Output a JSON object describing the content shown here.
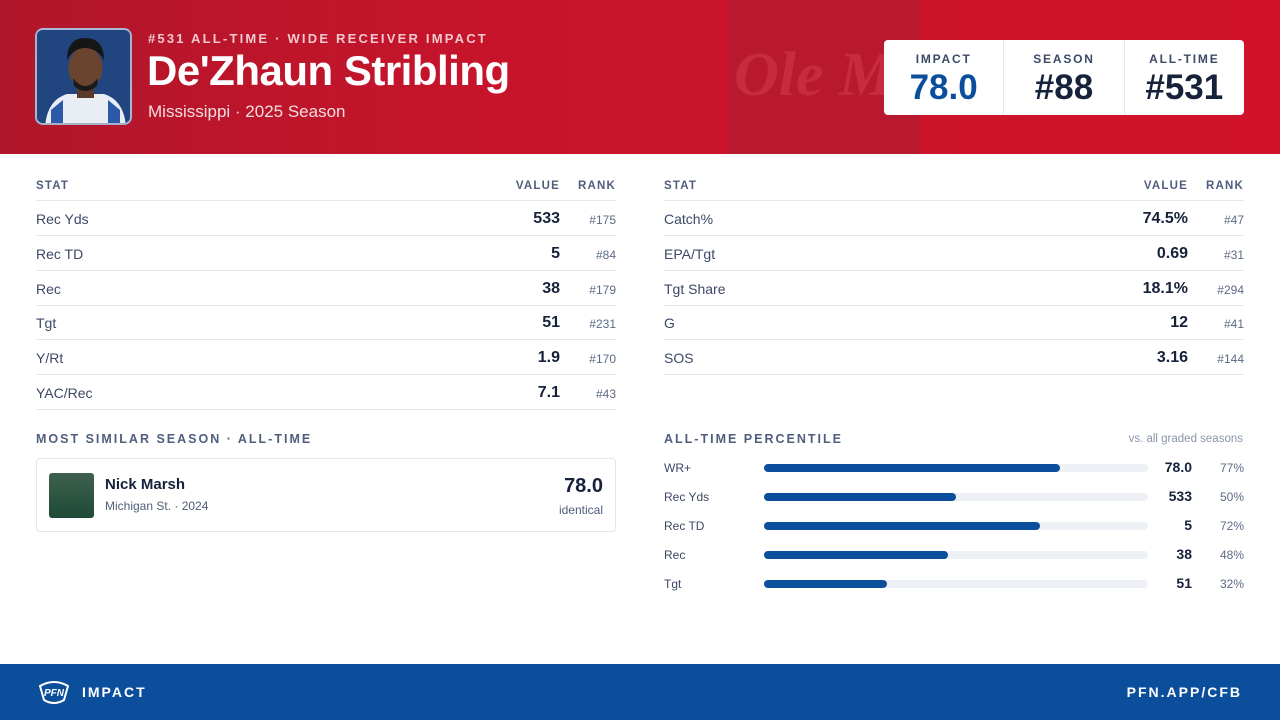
{
  "header": {
    "eyebrow": "#531 ALL-TIME · WIDE RECEIVER IMPACT",
    "name": "De'Zhaun Stribling",
    "subtitle": "Mississippi · 2025 Season",
    "watermark": "Ole Miss",
    "scores": [
      {
        "label": "IMPACT",
        "value": "78.0"
      },
      {
        "label": "SEASON",
        "value": "#88"
      },
      {
        "label": "ALL-TIME",
        "value": "#531"
      }
    ]
  },
  "stats_left": {
    "columns": [
      "STAT",
      "VALUE",
      "RANK"
    ],
    "rows": [
      [
        "Rec Yds",
        "533",
        "#175"
      ],
      [
        "Rec TD",
        "5",
        "#84"
      ],
      [
        "Rec",
        "38",
        "#179"
      ],
      [
        "Tgt",
        "51",
        "#231"
      ],
      [
        "Y/Rt",
        "1.9",
        "#170"
      ],
      [
        "YAC/Rec",
        "7.1",
        "#43"
      ]
    ]
  },
  "stats_right": {
    "columns": [
      "STAT",
      "VALUE",
      "RANK"
    ],
    "rows": [
      [
        "Catch%",
        "74.5%",
        "#47"
      ],
      [
        "EPA/Tgt",
        "0.69",
        "#31"
      ],
      [
        "Tgt Share",
        "18.1%",
        "#294"
      ],
      [
        "G",
        "12",
        "#41"
      ],
      [
        "SOS",
        "3.16",
        "#144"
      ]
    ]
  },
  "similar": {
    "title": "MOST SIMILAR SEASON · ALL-TIME",
    "player": "Nick Marsh",
    "detail": "Michigan St. · 2024",
    "score": "78.0",
    "note": "identical"
  },
  "percentile": {
    "title": "ALL-TIME PERCENTILE",
    "note": "vs. all graded seasons",
    "rows": [
      {
        "label": "WR+",
        "value": "78.0",
        "percentile": 77,
        "percentile_label": "77%"
      },
      {
        "label": "Rec Yds",
        "value": "533",
        "percentile": 50,
        "percentile_label": "50%"
      },
      {
        "label": "Rec TD",
        "value": "5",
        "percentile": 72,
        "percentile_label": "72%"
      },
      {
        "label": "Rec",
        "value": "38",
        "percentile": 48,
        "percentile_label": "48%"
      },
      {
        "label": "Tgt",
        "value": "51",
        "percentile": 32,
        "percentile_label": "32%"
      }
    ]
  },
  "footer": {
    "logo": "PFN",
    "label": "IMPACT",
    "url": "PFN.APP/CFB"
  }
}
